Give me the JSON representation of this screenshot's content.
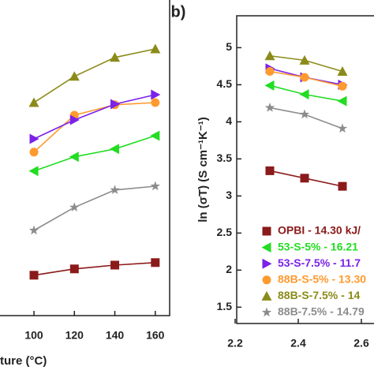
{
  "chart_data": [
    {
      "type": "line",
      "x_label": "ture (°C)",
      "xlim": [
        59.8,
        167.1
      ],
      "xticks": [
        100,
        120,
        140,
        160
      ],
      "ylim": [
        0,
        100
      ],
      "x": [
        100,
        120,
        140,
        160
      ],
      "series": [
        {
          "color": "#8b8b1a",
          "marker": "triangle-up",
          "values": [
            67.5,
            75.8,
            81.8,
            84.5
          ]
        },
        {
          "color": "#ff9a2e",
          "marker": "circle",
          "values": [
            51.8,
            63.5,
            66.8,
            67.5
          ]
        },
        {
          "color": "#7b22e8",
          "marker": "triangle-right",
          "values": [
            56,
            62,
            67,
            70
          ]
        },
        {
          "color": "#22dd22",
          "marker": "triangle-left",
          "values": [
            45.8,
            50.3,
            52.8,
            57
          ]
        },
        {
          "color": "#8c8c8c",
          "marker": "star",
          "values": [
            27,
            34.3,
            39.8,
            41
          ]
        },
        {
          "color": "#8b1a1a",
          "marker": "square",
          "values": [
            12.8,
            14.8,
            16,
            16.8
          ]
        }
      ]
    },
    {
      "type": "line",
      "title": "b)",
      "y_label": "ln (σT) (S cm⁻¹K⁻¹)",
      "xlim": [
        2.205,
        2.64
      ],
      "xticks": [
        2.2,
        2.4,
        2.6
      ],
      "ylim": [
        1.28,
        5.43
      ],
      "yticks": [
        1.5,
        2.0,
        2.5,
        3.0,
        3.5,
        4.0,
        4.5,
        5.0
      ],
      "x": [
        2.31,
        2.42,
        2.54
      ],
      "series": [
        {
          "name": "OPBI - 14.30 kJ/",
          "color": "#8b1a1a",
          "marker": "square",
          "values": [
            3.34,
            3.24,
            3.13
          ]
        },
        {
          "name": "53-S-5% - 16.21",
          "color": "#22dd22",
          "marker": "triangle-left",
          "values": [
            4.49,
            4.37,
            4.28
          ]
        },
        {
          "name": "53-S-7.5% - 11.7",
          "color": "#7b22e8",
          "marker": "triangle-right",
          "values": [
            4.72,
            4.6,
            4.5
          ]
        },
        {
          "name": "88B-S-5% - 13.30",
          "color": "#ff9a2e",
          "marker": "circle",
          "values": [
            4.68,
            4.6,
            4.48
          ]
        },
        {
          "name": "88B-S-7.5% - 14",
          "color": "#8b8b1a",
          "marker": "triangle-up",
          "values": [
            4.89,
            4.83,
            4.68
          ]
        },
        {
          "name": "88B-7.5% - 14.79",
          "color": "#8c8c8c",
          "marker": "star",
          "values": [
            4.19,
            4.1,
            3.91
          ]
        }
      ]
    }
  ]
}
